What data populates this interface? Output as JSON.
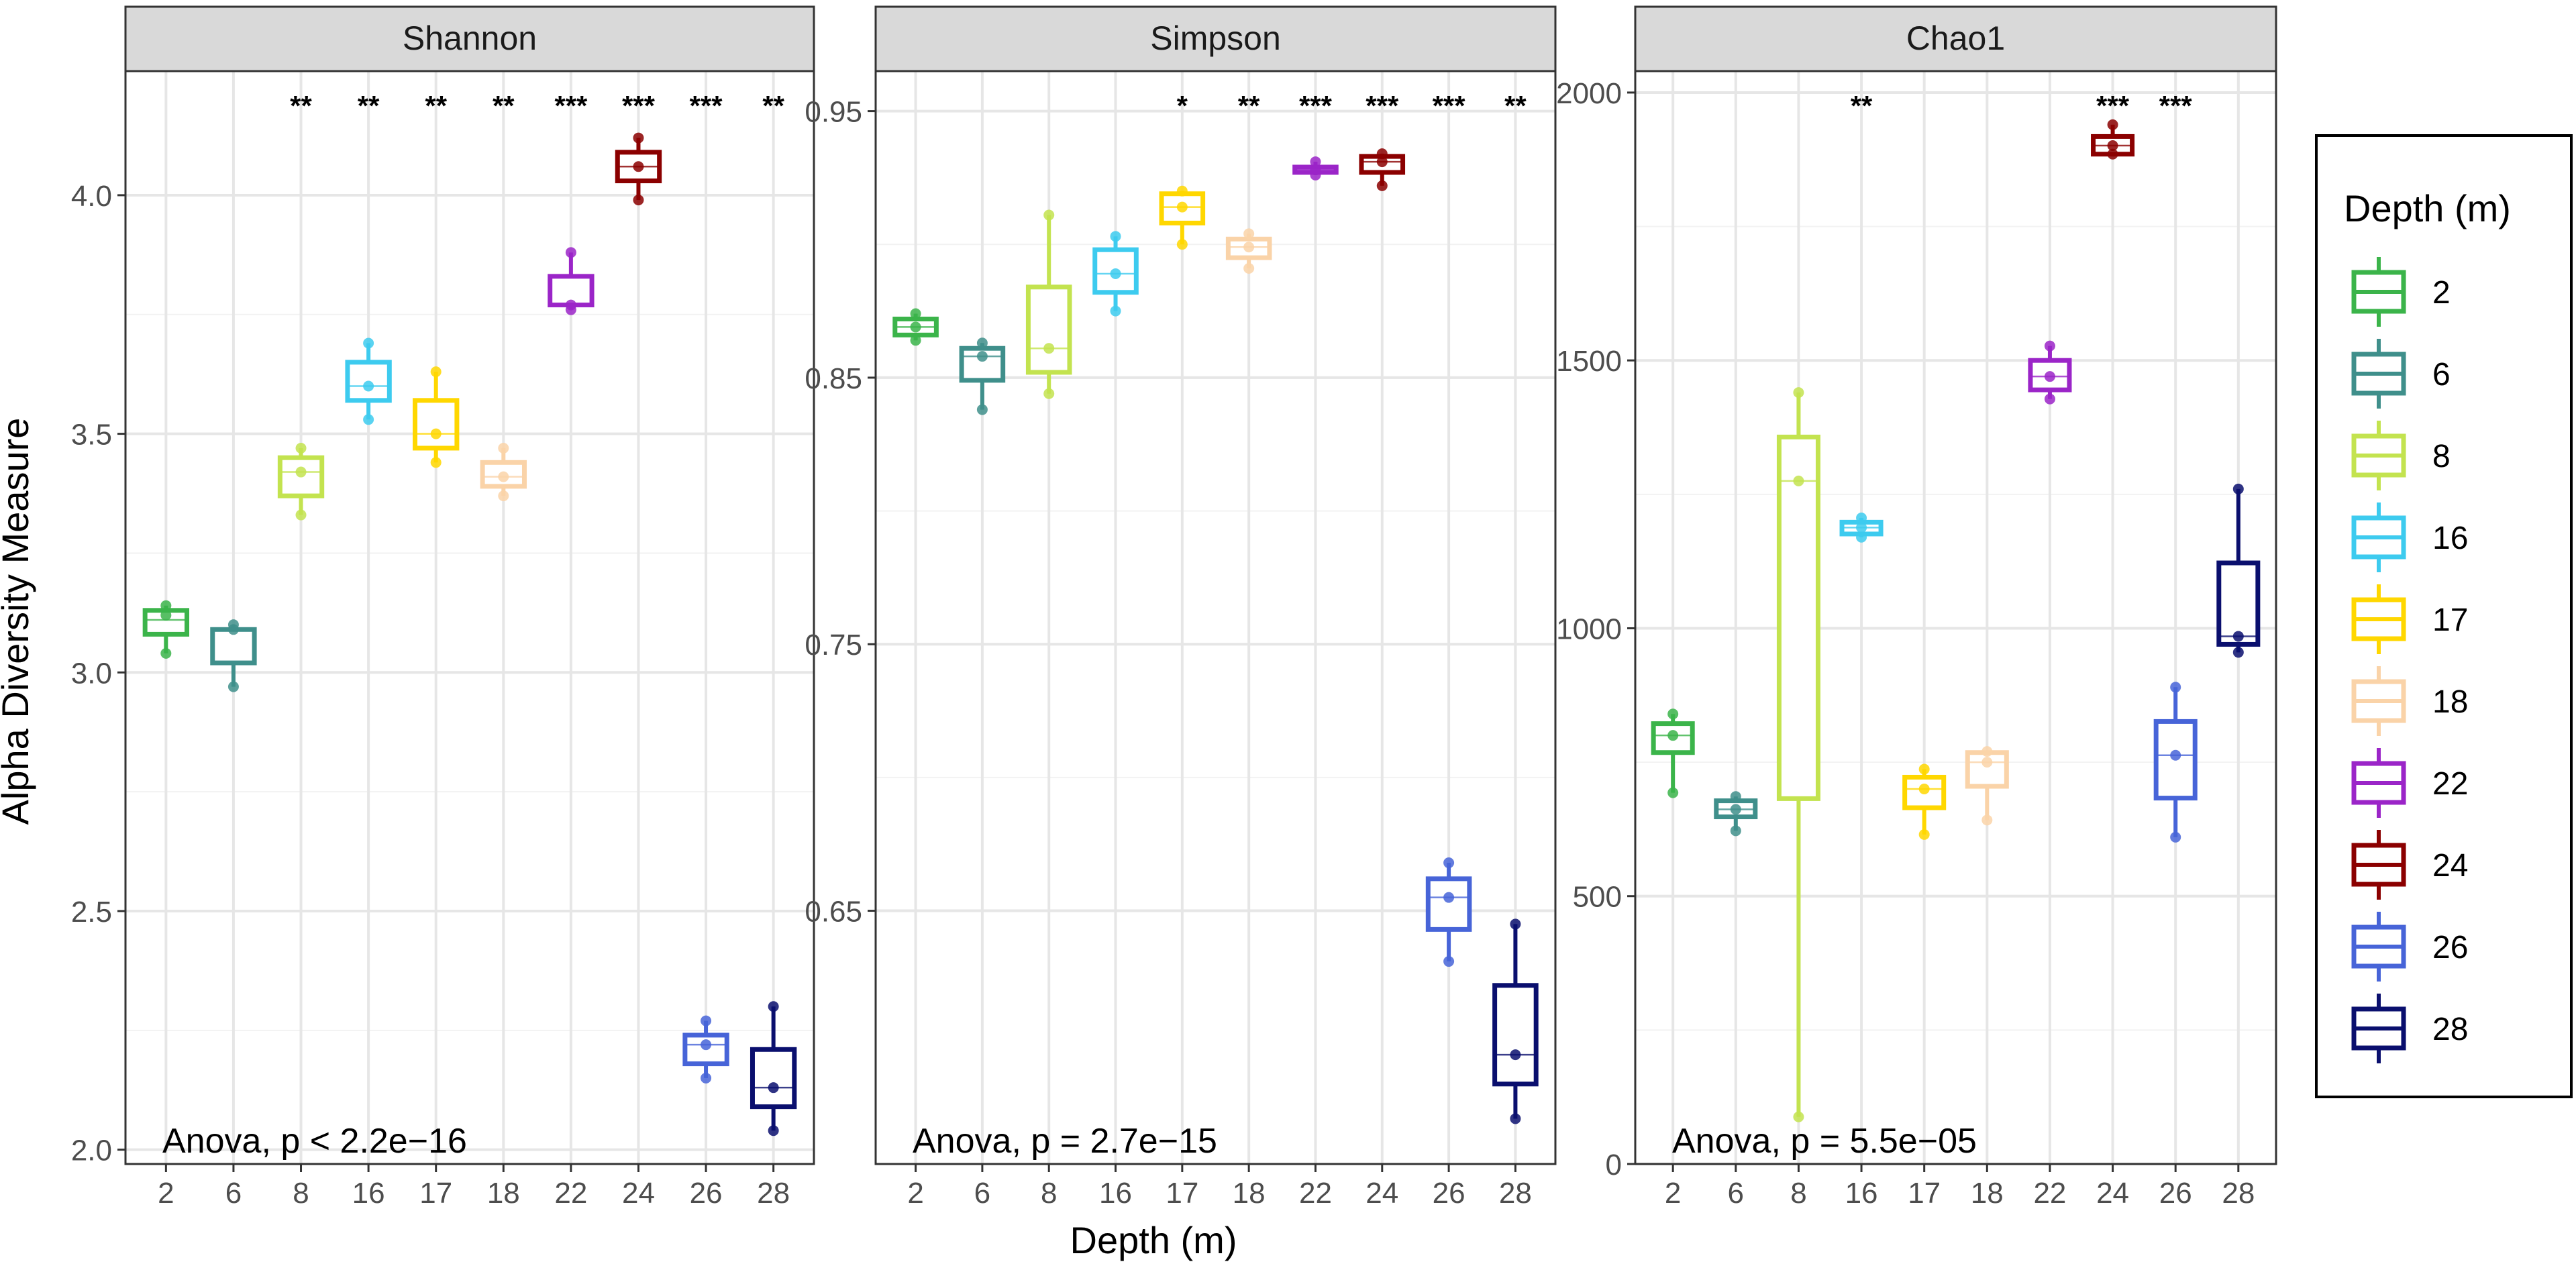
{
  "y_axis_label": "Alpha Diversity Measure",
  "x_axis_label": "Depth (m)",
  "legend": {
    "title": "Depth (m)",
    "entries": [
      {
        "label": "2",
        "color": "#3BB44A"
      },
      {
        "label": "6",
        "color": "#3F8F8B"
      },
      {
        "label": "8",
        "color": "#C3E34F"
      },
      {
        "label": "16",
        "color": "#3DCBEF"
      },
      {
        "label": "17",
        "color": "#FFD700"
      },
      {
        "label": "18",
        "color": "#FAD3A8"
      },
      {
        "label": "22",
        "color": "#9B25C8"
      },
      {
        "label": "24",
        "color": "#8B0000"
      },
      {
        "label": "26",
        "color": "#4764D8"
      },
      {
        "label": "28",
        "color": "#0A0F6E"
      }
    ]
  },
  "chart_data": [
    {
      "type": "box",
      "title": "Shannon",
      "categories": [
        "2",
        "6",
        "8",
        "16",
        "17",
        "18",
        "22",
        "24",
        "26",
        "28"
      ],
      "ylim": [
        1.97,
        4.26
      ],
      "yticks": [
        2.0,
        2.5,
        3.0,
        3.5,
        4.0
      ],
      "ytick_labels": [
        "2.0",
        "2.5",
        "3.0",
        "3.5",
        "4.0"
      ],
      "boxes": [
        {
          "q1": 3.08,
          "median": 3.11,
          "q3": 3.13,
          "whisker_low": 3.04,
          "whisker_high": 3.14,
          "points": [
            3.04,
            3.12,
            3.14
          ]
        },
        {
          "q1": 3.02,
          "median": 3.09,
          "q3": 3.09,
          "whisker_low": 2.97,
          "whisker_high": 3.1,
          "points": [
            2.97,
            3.09,
            3.1
          ]
        },
        {
          "q1": 3.37,
          "median": 3.42,
          "q3": 3.45,
          "whisker_low": 3.33,
          "whisker_high": 3.47,
          "points": [
            3.33,
            3.42,
            3.47
          ]
        },
        {
          "q1": 3.57,
          "median": 3.6,
          "q3": 3.65,
          "whisker_low": 3.53,
          "whisker_high": 3.69,
          "points": [
            3.53,
            3.6,
            3.69
          ]
        },
        {
          "q1": 3.47,
          "median": 3.5,
          "q3": 3.57,
          "whisker_low": 3.44,
          "whisker_high": 3.63,
          "points": [
            3.44,
            3.5,
            3.63
          ]
        },
        {
          "q1": 3.39,
          "median": 3.41,
          "q3": 3.44,
          "whisker_low": 3.37,
          "whisker_high": 3.47,
          "points": [
            3.37,
            3.41,
            3.47
          ]
        },
        {
          "q1": 3.77,
          "median": 3.77,
          "q3": 3.83,
          "whisker_low": 3.76,
          "whisker_high": 3.88,
          "points": [
            3.76,
            3.77,
            3.88
          ]
        },
        {
          "q1": 4.03,
          "median": 4.06,
          "q3": 4.09,
          "whisker_low": 3.99,
          "whisker_high": 4.12,
          "points": [
            3.99,
            4.06,
            4.12
          ]
        },
        {
          "q1": 2.18,
          "median": 2.22,
          "q3": 2.24,
          "whisker_low": 2.15,
          "whisker_high": 2.27,
          "points": [
            2.15,
            2.22,
            2.27
          ]
        },
        {
          "q1": 2.09,
          "median": 2.13,
          "q3": 2.21,
          "whisker_low": 2.04,
          "whisker_high": 2.3,
          "points": [
            2.04,
            2.13,
            2.3
          ]
        }
      ],
      "significance": [
        "",
        "",
        "**",
        "**",
        "**",
        "**",
        "***",
        "***",
        "***",
        "**"
      ],
      "annotation": "Anova, p < 2.2e−16"
    },
    {
      "type": "box",
      "title": "Simpson",
      "categories": [
        "2",
        "6",
        "8",
        "16",
        "17",
        "18",
        "22",
        "24",
        "26",
        "28"
      ],
      "ylim": [
        0.555,
        0.965
      ],
      "yticks": [
        0.65,
        0.75,
        0.85,
        0.95
      ],
      "ytick_labels": [
        "0.65",
        "0.75",
        "0.85",
        "0.95"
      ],
      "boxes": [
        {
          "q1": 0.866,
          "median": 0.869,
          "q3": 0.872,
          "whisker_low": 0.864,
          "whisker_high": 0.874,
          "points": [
            0.864,
            0.869,
            0.874
          ]
        },
        {
          "q1": 0.849,
          "median": 0.858,
          "q3": 0.861,
          "whisker_low": 0.838,
          "whisker_high": 0.863,
          "points": [
            0.838,
            0.858,
            0.863
          ]
        },
        {
          "q1": 0.852,
          "median": 0.861,
          "q3": 0.884,
          "whisker_low": 0.844,
          "whisker_high": 0.911,
          "points": [
            0.844,
            0.861,
            0.911
          ]
        },
        {
          "q1": 0.882,
          "median": 0.889,
          "q3": 0.898,
          "whisker_low": 0.875,
          "whisker_high": 0.903,
          "points": [
            0.875,
            0.889,
            0.903
          ]
        },
        {
          "q1": 0.908,
          "median": 0.914,
          "q3": 0.919,
          "whisker_low": 0.9,
          "whisker_high": 0.92,
          "points": [
            0.9,
            0.914,
            0.92
          ]
        },
        {
          "q1": 0.895,
          "median": 0.899,
          "q3": 0.902,
          "whisker_low": 0.891,
          "whisker_high": 0.904,
          "points": [
            0.891,
            0.899,
            0.904
          ]
        },
        {
          "q1": 0.927,
          "median": 0.928,
          "q3": 0.929,
          "whisker_low": 0.926,
          "whisker_high": 0.931,
          "points": [
            0.926,
            0.928,
            0.931
          ]
        },
        {
          "q1": 0.927,
          "median": 0.931,
          "q3": 0.933,
          "whisker_low": 0.922,
          "whisker_high": 0.934,
          "points": [
            0.922,
            0.931,
            0.934
          ]
        },
        {
          "q1": 0.643,
          "median": 0.655,
          "q3": 0.662,
          "whisker_low": 0.631,
          "whisker_high": 0.668,
          "points": [
            0.631,
            0.655,
            0.668
          ]
        },
        {
          "q1": 0.585,
          "median": 0.596,
          "q3": 0.622,
          "whisker_low": 0.572,
          "whisker_high": 0.645,
          "points": [
            0.572,
            0.596,
            0.645
          ]
        }
      ],
      "significance": [
        "",
        "",
        "",
        "",
        "*",
        "**",
        "***",
        "***",
        "***",
        "**"
      ],
      "annotation": "Anova, p = 2.7e−15"
    },
    {
      "type": "box",
      "title": "Chao1",
      "categories": [
        "2",
        "6",
        "8",
        "16",
        "17",
        "18",
        "22",
        "24",
        "26",
        "28"
      ],
      "ylim": [
        0,
        2040
      ],
      "yticks": [
        0,
        500,
        1000,
        1500,
        2000
      ],
      "ytick_labels": [
        "0",
        "500",
        "1000",
        "1500",
        "2000"
      ],
      "boxes": [
        {
          "q1": 768,
          "median": 800,
          "q3": 822,
          "whisker_low": 693,
          "whisker_high": 840,
          "points": [
            693,
            800,
            840
          ]
        },
        {
          "q1": 648,
          "median": 662,
          "q3": 678,
          "whisker_low": 622,
          "whisker_high": 686,
          "points": [
            622,
            662,
            686
          ]
        },
        {
          "q1": 682,
          "median": 1275,
          "q3": 1357,
          "whisker_low": 88,
          "whisker_high": 1440,
          "points": [
            88,
            1275,
            1440
          ]
        },
        {
          "q1": 1176,
          "median": 1188,
          "q3": 1198,
          "whisker_low": 1170,
          "whisker_high": 1206,
          "points": [
            1170,
            1188,
            1206
          ]
        },
        {
          "q1": 665,
          "median": 700,
          "q3": 722,
          "whisker_low": 615,
          "whisker_high": 737,
          "points": [
            615,
            700,
            737
          ]
        },
        {
          "q1": 705,
          "median": 750,
          "q3": 768,
          "whisker_low": 642,
          "whisker_high": 770,
          "points": [
            642,
            750,
            770
          ]
        },
        {
          "q1": 1445,
          "median": 1470,
          "q3": 1500,
          "whisker_low": 1428,
          "whisker_high": 1527,
          "points": [
            1428,
            1470,
            1527
          ]
        },
        {
          "q1": 1885,
          "median": 1901,
          "q3": 1918,
          "whisker_low": 1885,
          "whisker_high": 1940,
          "points": [
            1885,
            1901,
            1940
          ]
        },
        {
          "q1": 683,
          "median": 763,
          "q3": 826,
          "whisker_low": 610,
          "whisker_high": 890,
          "points": [
            610,
            763,
            890
          ]
        },
        {
          "q1": 970,
          "median": 985,
          "q3": 1122,
          "whisker_low": 955,
          "whisker_high": 1260,
          "points": [
            955,
            985,
            1260
          ]
        }
      ],
      "significance": [
        "",
        "",
        "",
        "**",
        "",
        "",
        "",
        "***",
        "***",
        ""
      ],
      "annotation": "Anova, p = 5.5e−05"
    }
  ]
}
